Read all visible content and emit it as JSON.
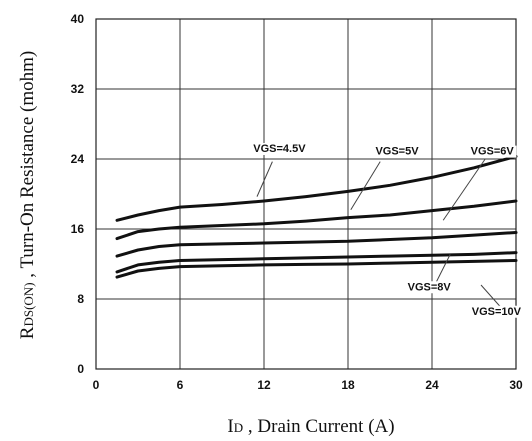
{
  "chart_data": {
    "type": "line",
    "xlabel_main": "I",
    "xlabel_sub": "D",
    "xlabel_rest": " , Drain Current (A)",
    "ylabel_main": "R",
    "ylabel_sub": "DS(ON)",
    "ylabel_rest": " , Turn-On Resistance (mohm)",
    "xlim": [
      0,
      30
    ],
    "ylim": [
      0,
      40
    ],
    "x_ticks": [
      0,
      6,
      12,
      18,
      24,
      30
    ],
    "y_ticks": [
      0,
      8,
      16,
      24,
      32,
      40
    ],
    "grid": true,
    "series": [
      {
        "name": "VGS=4.5V",
        "x": [
          1.5,
          3,
          4.5,
          6,
          9,
          12,
          15,
          18,
          21,
          24,
          27,
          30
        ],
        "y": [
          17.0,
          17.6,
          18.1,
          18.5,
          18.8,
          19.2,
          19.7,
          20.3,
          21.0,
          21.9,
          23.0,
          24.3
        ]
      },
      {
        "name": "VGS=5V",
        "x": [
          1.5,
          3,
          4.5,
          6,
          9,
          12,
          15,
          18,
          21,
          24,
          27,
          30
        ],
        "y": [
          14.9,
          15.7,
          16.0,
          16.2,
          16.4,
          16.6,
          16.9,
          17.3,
          17.6,
          18.1,
          18.6,
          19.2
        ]
      },
      {
        "name": "VGS=6V",
        "x": [
          1.5,
          3,
          4.5,
          6,
          9,
          12,
          15,
          18,
          21,
          24,
          27,
          30
        ],
        "y": [
          12.9,
          13.6,
          14.0,
          14.2,
          14.3,
          14.4,
          14.5,
          14.6,
          14.8,
          15.0,
          15.3,
          15.6
        ]
      },
      {
        "name": "VGS=8V",
        "x": [
          1.5,
          3,
          4.5,
          6,
          9,
          12,
          15,
          18,
          21,
          24,
          27,
          30
        ],
        "y": [
          11.1,
          11.9,
          12.2,
          12.4,
          12.5,
          12.6,
          12.7,
          12.8,
          12.9,
          13.0,
          13.1,
          13.3
        ]
      },
      {
        "name": "VGS=10V",
        "x": [
          1.5,
          3,
          4.5,
          6,
          9,
          12,
          15,
          18,
          21,
          24,
          27,
          30
        ],
        "y": [
          10.5,
          11.2,
          11.5,
          11.7,
          11.8,
          11.9,
          11.95,
          12.0,
          12.1,
          12.2,
          12.3,
          12.4
        ]
      }
    ],
    "annotations": [
      {
        "text": "VGS=4.5V",
        "label_x": 13.1,
        "label_y": 24.8,
        "pointer_from": [
          12.6,
          23.7
        ],
        "pointer_to": [
          11.5,
          19.7
        ]
      },
      {
        "text": "VGS=5V",
        "label_x": 21.5,
        "label_y": 24.5,
        "pointer_from": [
          20.3,
          23.7
        ],
        "pointer_to": [
          18.2,
          18.2
        ]
      },
      {
        "text": "VGS=6V",
        "label_x": 28.3,
        "label_y": 24.5,
        "pointer_from": [
          27.8,
          24.0
        ],
        "pointer_to": [
          24.8,
          17.0
        ]
      },
      {
        "text": "VGS=8V",
        "label_x": 23.8,
        "label_y": 9.0,
        "pointer_from": [
          24.2,
          9.6
        ],
        "pointer_to": [
          25.3,
          13.1
        ]
      },
      {
        "text": "VGS=10V",
        "label_x": 28.6,
        "label_y": 6.2,
        "pointer_from": [
          29.0,
          6.9
        ],
        "pointer_to": [
          27.5,
          9.6
        ]
      }
    ]
  }
}
